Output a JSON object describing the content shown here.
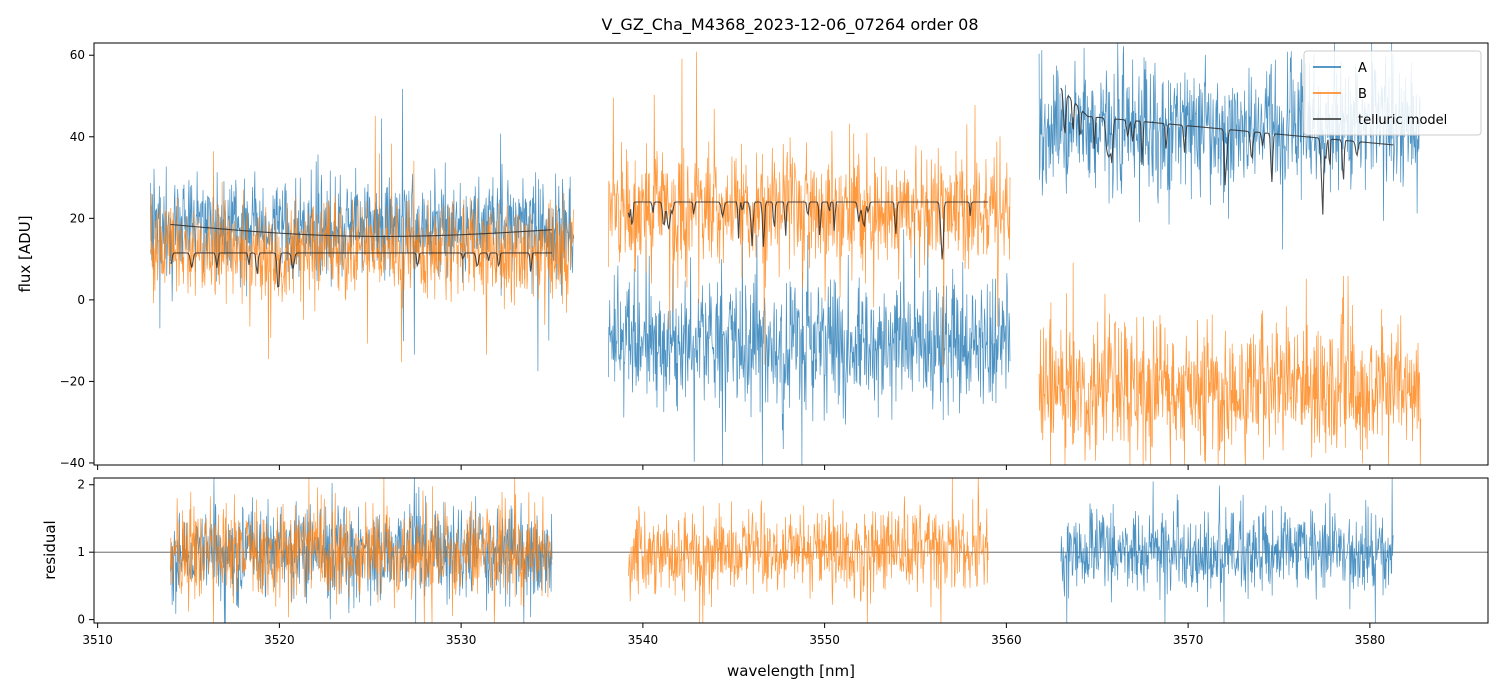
{
  "chart_data": {
    "type": "line",
    "title": "V_GZ_Cha_M4368_2023-12-06_07264  order 08",
    "xlabel": "wavelength [nm]",
    "xlim": [
      3509.8,
      3586.5
    ],
    "xticks": [
      3510,
      3520,
      3530,
      3540,
      3550,
      3560,
      3570,
      3580
    ],
    "colors": {
      "A": "#1f77b4",
      "B": "#ff7f0e",
      "model": "#2b2b2b",
      "unity": "#555555"
    },
    "top": {
      "ylabel": "flux [ADU]",
      "ylim": [
        -40.5,
        63
      ],
      "yticks": [
        -40,
        -20,
        0,
        20,
        40,
        60
      ],
      "ytick_labels": [
        "−40",
        "−20",
        "0",
        "20",
        "40",
        "60"
      ],
      "segments": [
        {
          "name": "segment-1",
          "x": [
            3512.9,
            3536.2
          ],
          "A": {
            "mean": 18,
            "noise": 6,
            "spikes": 18
          },
          "B": {
            "mean": 12,
            "noise": 6,
            "spikes": 16
          },
          "model_A": {
            "x": [
              3514.0,
              3535.0
            ],
            "start": 18.5,
            "end": 17.2,
            "dip": 16.0,
            "lines": 0
          },
          "model_B": {
            "x": [
              3514.0,
              3535.0
            ],
            "level": 11.5,
            "lines": 14,
            "depth": 5
          }
        },
        {
          "name": "segment-2",
          "x": [
            3538.1,
            3560.2
          ],
          "A": {
            "mean": -10,
            "noise": 8,
            "spikes": 22
          },
          "B": {
            "mean": 22,
            "noise": 7,
            "spikes": 20
          },
          "model_B": {
            "x": [
              3539.2,
              3559.0
            ],
            "level": 24.0,
            "lines": 30,
            "depth": 8
          }
        },
        {
          "name": "segment-3",
          "x": [
            3561.8,
            3582.8
          ],
          "A": {
            "mean": 42,
            "noise": 8,
            "spikes": 20
          },
          "B": {
            "mean": -22,
            "noise": 8,
            "spikes": 22
          },
          "model_A": {
            "x": [
              3563.0,
              3581.3
            ],
            "start": 52.0,
            "level": 45.0,
            "end": 38.0,
            "lines": 24,
            "depth": 10
          }
        }
      ]
    },
    "bottom": {
      "ylabel": "residual",
      "ylim": [
        -0.05,
        2.1
      ],
      "yticks": [
        0,
        1,
        2
      ],
      "ytick_labels": [
        "0",
        "1",
        "2"
      ],
      "unity_line": 1,
      "segments": [
        {
          "name": "segment-1",
          "x": [
            3514.0,
            3535.0
          ],
          "series": [
            "A",
            "B"
          ],
          "noise": 0.35
        },
        {
          "name": "segment-2",
          "x": [
            3539.2,
            3559.0
          ],
          "series": [
            "B"
          ],
          "noise": 0.32
        },
        {
          "name": "segment-3",
          "x": [
            3563.0,
            3581.3
          ],
          "series": [
            "A"
          ],
          "noise": 0.3
        }
      ]
    },
    "legend": {
      "position": "top-right",
      "entries": [
        {
          "key": "A",
          "label": "A"
        },
        {
          "key": "B",
          "label": "B"
        },
        {
          "key": "model",
          "label": "telluric model"
        }
      ]
    }
  }
}
